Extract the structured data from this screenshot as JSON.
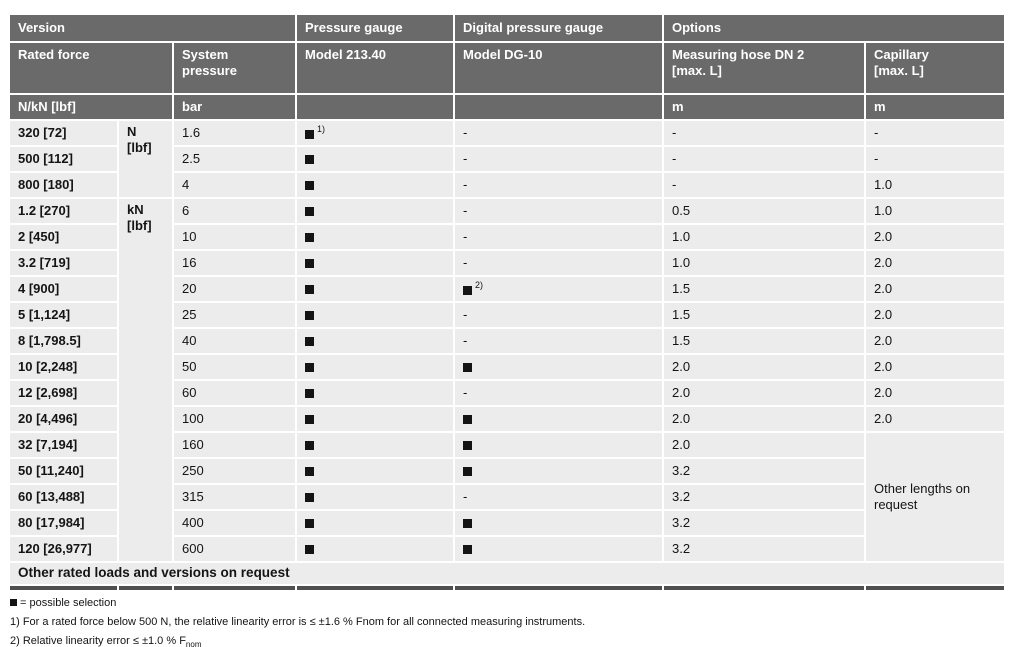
{
  "colors": {
    "header_bg": "#6a6a6a",
    "header_text": "#ffffff",
    "row_bg": "#ececec",
    "bottom_border": "#4f4f4f"
  },
  "header": {
    "version": "Version",
    "pressure_gauge": "Pressure gauge",
    "digital_pressure_gauge": "Digital pressure gauge",
    "options": "Options",
    "rated_force": "Rated force",
    "system_pressure": "System\npressure",
    "model_213": "Model 213.40",
    "model_dg10": "Model DG-10",
    "measuring_hose": "Measuring hose DN 2\n[max. L]",
    "capillary": "Capillary\n[max. L]",
    "force_unit": "N/kN [lbf]",
    "pressure_unit": "bar",
    "hose_unit": "m",
    "capillary_unit": "m"
  },
  "unit_groups": [
    {
      "label": "N\n[lbf]",
      "span": 3
    },
    {
      "label": "kN\n[lbf]",
      "span": 14
    }
  ],
  "rows": [
    {
      "force": "320 [72]",
      "bar": "1.6",
      "gauge": "■1)",
      "digital": "-",
      "hose": "-",
      "capillary": "-"
    },
    {
      "force": "500 [112]",
      "bar": "2.5",
      "gauge": "■",
      "digital": "-",
      "hose": "-",
      "capillary": "-"
    },
    {
      "force": "800 [180]",
      "bar": "4",
      "gauge": "■",
      "digital": "-",
      "hose": "-",
      "capillary": "1.0"
    },
    {
      "force": "1.2 [270]",
      "bar": "6",
      "gauge": "■",
      "digital": "-",
      "hose": "0.5",
      "capillary": "1.0"
    },
    {
      "force": "2 [450]",
      "bar": "10",
      "gauge": "■",
      "digital": "-",
      "hose": "1.0",
      "capillary": "2.0"
    },
    {
      "force": "3.2 [719]",
      "bar": "16",
      "gauge": "■",
      "digital": "-",
      "hose": "1.0",
      "capillary": "2.0"
    },
    {
      "force": "4 [900]",
      "bar": "20",
      "gauge": "■",
      "digital": "■2)",
      "hose": "1.5",
      "capillary": "2.0"
    },
    {
      "force": "5 [1,124]",
      "bar": "25",
      "gauge": "■",
      "digital": "-",
      "hose": "1.5",
      "capillary": "2.0"
    },
    {
      "force": "8 [1,798.5]",
      "bar": "40",
      "gauge": "■",
      "digital": "-",
      "hose": "1.5",
      "capillary": "2.0"
    },
    {
      "force": "10 [2,248]",
      "bar": "50",
      "gauge": "■",
      "digital": "■",
      "hose": "2.0",
      "capillary": "2.0"
    },
    {
      "force": "12 [2,698]",
      "bar": "60",
      "gauge": "■",
      "digital": "-",
      "hose": "2.0",
      "capillary": "2.0"
    },
    {
      "force": "20 [4,496]",
      "bar": "100",
      "gauge": "■",
      "digital": "■",
      "hose": "2.0",
      "capillary": "2.0"
    },
    {
      "force": "32 [7,194]",
      "bar": "160",
      "gauge": "■",
      "digital": "■",
      "hose": "2.0"
    },
    {
      "force": "50 [11,240]",
      "bar": "250",
      "gauge": "■",
      "digital": "■",
      "hose": "3.2"
    },
    {
      "force": "60 [13,488]",
      "bar": "315",
      "gauge": "■",
      "digital": "-",
      "hose": "3.2"
    },
    {
      "force": "80 [17,984]",
      "bar": "400",
      "gauge": "■",
      "digital": "■",
      "hose": "3.2"
    },
    {
      "force": "120 [26,977]",
      "bar": "600",
      "gauge": "■",
      "digital": "■",
      "hose": "3.2"
    }
  ],
  "capillary_merged": {
    "label": "Other lengths on request",
    "start_index": 12,
    "span": 5
  },
  "footer_row": "Other rated loads and versions on request",
  "legend_text": " = possible selection",
  "footnotes": [
    {
      "text": "1) For a rated force below 500 N, the relative linearity error is ≤ ±1.6 % Fnom for all connected measuring instruments."
    },
    {
      "text": "2) Relative linearity error ≤ ±1.0 % F",
      "sub": "nom"
    }
  ]
}
